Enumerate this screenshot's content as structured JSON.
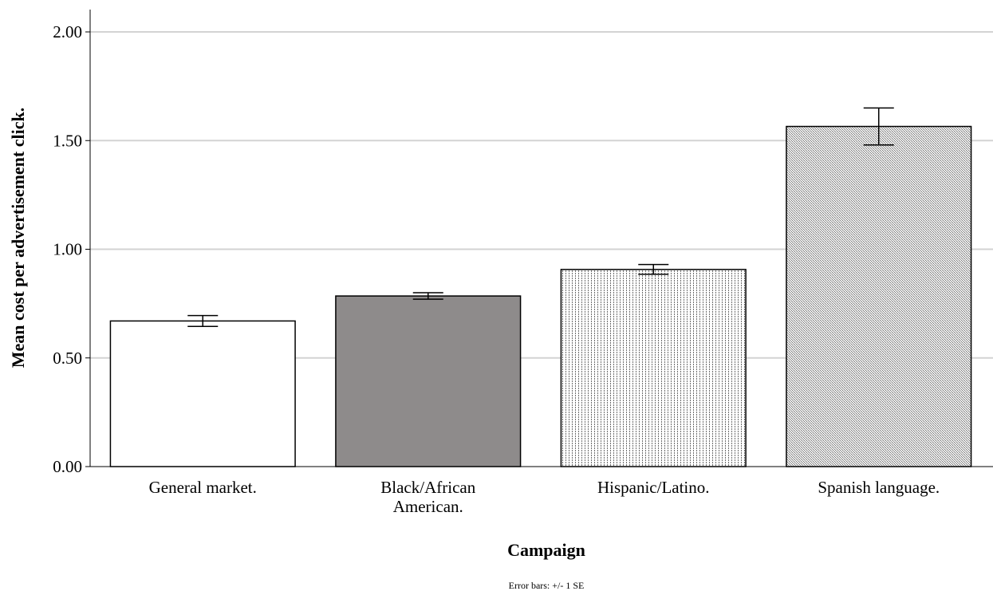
{
  "chart_data": {
    "type": "bar",
    "categories": [
      [
        "General market."
      ],
      [
        "Black/African",
        "American."
      ],
      [
        "Hispanic/Latino."
      ],
      [
        "Spanish language."
      ]
    ],
    "values": [
      0.67,
      0.785,
      0.907,
      1.565
    ],
    "error_bars": {
      "type": "+/- 1 SE",
      "lower": [
        0.645,
        0.77,
        0.885,
        1.48
      ],
      "upper": [
        0.695,
        0.8,
        0.93,
        1.65
      ]
    },
    "bar_fills": [
      "solid-white",
      "solid-gray",
      "vertical-dots",
      "fine-crosshatch"
    ],
    "colors": {
      "gray_bar": "#8e8b8b",
      "gridline": "#d3d3d3",
      "outline": "#000000"
    },
    "xlabel": "Campaign",
    "ylabel": "Mean cost per advertisement click.",
    "ylim": [
      0,
      2.0
    ],
    "yticks": [
      0,
      0.5,
      1.0,
      1.5,
      2.0
    ],
    "ytick_labels": [
      "0.00",
      "0.50",
      "1.00",
      "1.50",
      "2.00"
    ],
    "grid": true,
    "footnote": "Error bars: +/- 1 SE"
  }
}
